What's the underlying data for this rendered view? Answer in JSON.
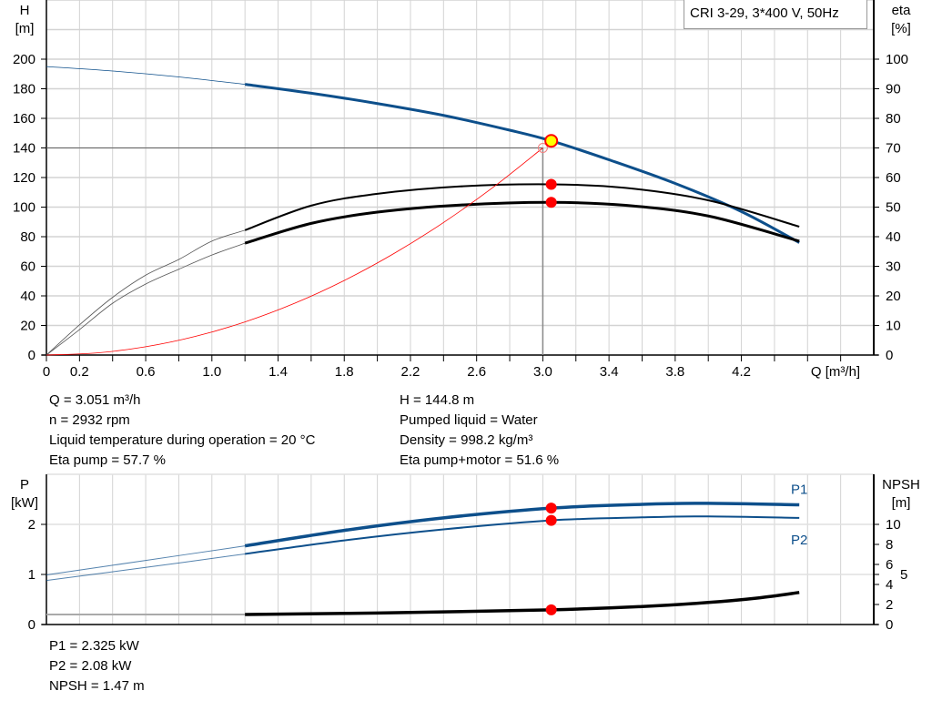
{
  "title": "CRI 3-29, 3*400 V, 50Hz",
  "info_top_left": [
    "Q = 3.051 m³/h",
    "n = 2932 rpm",
    "Liquid temperature during operation = 20 °C",
    "Eta pump = 57.7 %"
  ],
  "info_top_right": [
    "H = 144.8 m",
    "Pumped liquid = Water",
    "Density = 998.2 kg/m³",
    "Eta pump+motor = 51.6 %"
  ],
  "info_bottom": [
    "P1 = 2.325 kW",
    "P2 = 2.08 kW",
    "NPSH = 1.47 m"
  ],
  "colors": {
    "head": "#0d4f8b",
    "eta": "#000000",
    "system": "#ff0000",
    "power": "#0d4f8b",
    "npsh": "#000000",
    "duty_point": "#ffff00",
    "marker": "#ff0000",
    "grid": "#d3d3d3"
  },
  "chart_data": [
    {
      "type": "line",
      "xlabel": "Q [m³/h]",
      "ylabel_left": [
        "H",
        "[m]"
      ],
      "ylabel_right": [
        "eta",
        "[%]"
      ],
      "xlim": [
        0,
        5.0
      ],
      "ylim_left": [
        0,
        240
      ],
      "ylim_right": [
        0,
        120
      ],
      "xticks": [
        "0",
        "0.2",
        "0.6",
        "1.0",
        "1.4",
        "1.8",
        "2.2",
        "2.6",
        "3.0",
        "3.4",
        "3.8",
        "4.2"
      ],
      "xtick_values": [
        0,
        0.2,
        0.6,
        1.0,
        1.4,
        1.8,
        2.2,
        2.6,
        3.0,
        3.4,
        3.8,
        4.2
      ],
      "yticks_left": [
        0,
        20,
        40,
        60,
        80,
        100,
        120,
        140,
        160,
        180,
        200
      ],
      "yticks_right": [
        0,
        10,
        20,
        30,
        40,
        50,
        60,
        70,
        80,
        90,
        100
      ],
      "grid": true,
      "operating_range": [
        1.2,
        4.55
      ],
      "series": [
        {
          "key": "head",
          "axis": "left",
          "x": [
            0,
            0.4,
            0.8,
            1.2,
            1.6,
            2.0,
            2.4,
            2.8,
            3.051,
            3.4,
            3.8,
            4.2,
            4.55
          ],
          "y": [
            195,
            192,
            188,
            183,
            177,
            170,
            162,
            152,
            144.8,
            132,
            116,
            97,
            76
          ]
        },
        {
          "key": "eta_pump",
          "axis": "right",
          "x": [
            0,
            0.2,
            0.4,
            0.6,
            0.8,
            1.0,
            1.2,
            1.6,
            2.0,
            2.5,
            3.051,
            3.5,
            4.0,
            4.55
          ],
          "y": [
            0,
            10.2,
            19.5,
            27,
            32.3,
            38.5,
            42.2,
            50.5,
            54.5,
            57,
            57.7,
            56.5,
            52.3,
            43.4
          ]
        },
        {
          "key": "eta_pump_motor",
          "axis": "right",
          "x": [
            0,
            0.2,
            0.4,
            0.6,
            0.8,
            1.0,
            1.2,
            1.6,
            2.0,
            2.5,
            3.051,
            3.5,
            4.0,
            4.55
          ],
          "y": [
            0,
            8.6,
            17.5,
            24,
            29,
            33.8,
            37.8,
            44.5,
            48.3,
            50.7,
            51.6,
            50.6,
            47,
            38.5
          ]
        },
        {
          "key": "system",
          "axis": "left",
          "x": [
            0,
            0.3,
            0.6,
            0.9,
            1.2,
            1.5,
            1.8,
            2.1,
            2.4,
            2.7,
            3.0
          ],
          "y": [
            0,
            1.4,
            5.6,
            12.6,
            22.4,
            35,
            50.4,
            68.6,
            89.6,
            113.4,
            140
          ]
        }
      ],
      "reference_lines": {
        "h": 140,
        "q": 3.0
      },
      "duty_point": {
        "q": 3.051,
        "h": 144.8,
        "eta_pump": 57.7,
        "eta_pump_motor": 51.6
      }
    },
    {
      "type": "line",
      "ylabel_left": [
        "P",
        "[kW]"
      ],
      "ylabel_right": [
        "NPSH",
        "[m]"
      ],
      "xlim": [
        0,
        5.0
      ],
      "ylim_left": [
        0,
        3.0
      ],
      "ylim_right": [
        0,
        15
      ],
      "yticks_left": [
        0,
        1,
        2
      ],
      "yticks_right": [
        0,
        2,
        4,
        5,
        6,
        8,
        10
      ],
      "grid": true,
      "operating_range": [
        1.2,
        4.55
      ],
      "series": [
        {
          "key": "P1",
          "name": "P1",
          "axis": "left",
          "x": [
            0,
            0.6,
            1.2,
            1.8,
            2.4,
            3.051,
            3.6,
            4.0,
            4.55
          ],
          "y": [
            0.99,
            1.28,
            1.57,
            1.88,
            2.13,
            2.325,
            2.4,
            2.42,
            2.39
          ]
        },
        {
          "key": "P2",
          "name": "P2",
          "axis": "left",
          "x": [
            0,
            0.6,
            1.2,
            1.8,
            2.4,
            3.051,
            3.6,
            4.0,
            4.55
          ],
          "y": [
            0.88,
            1.14,
            1.41,
            1.68,
            1.9,
            2.08,
            2.14,
            2.16,
            2.13
          ]
        },
        {
          "key": "NPSH",
          "axis": "right",
          "x": [
            0,
            1.2,
            2.0,
            3.051,
            3.6,
            4.0,
            4.3,
            4.55
          ],
          "y": [
            1.0,
            1.0,
            1.15,
            1.47,
            1.8,
            2.2,
            2.65,
            3.2
          ]
        }
      ],
      "duty_point": {
        "q": 3.051,
        "P1": 2.325,
        "P2": 2.08,
        "NPSH": 1.47
      }
    }
  ]
}
